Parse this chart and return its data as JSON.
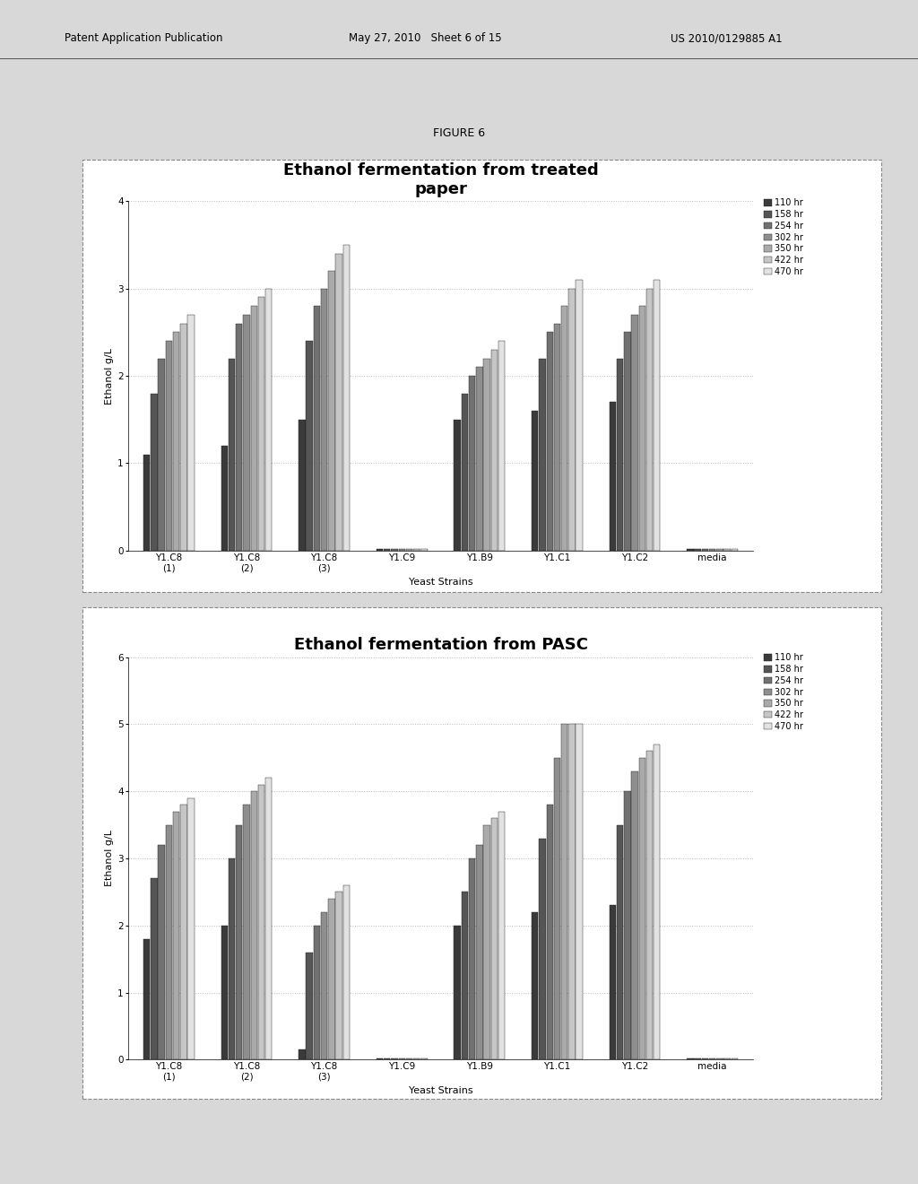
{
  "figure_label": "FIGURE 6",
  "chart1": {
    "title": "Ethanol fermentation from treated\npaper",
    "ylabel": "Ethanol g/L",
    "xlabel": "Yeast Strains",
    "ylim": [
      0,
      4
    ],
    "yticks": [
      0,
      1,
      2,
      3,
      4
    ],
    "categories": [
      "Y1.C8\n(1)",
      "Y1.C8\n(2)",
      "Y1.C8\n(3)",
      "Y1.C9",
      "Y1.B9",
      "Y1.C1",
      "Y1.C2",
      "media"
    ],
    "series_labels": [
      "110 hr",
      "158 hr",
      "254 hr",
      "302 hr",
      "350 hr",
      "422 hr",
      "470 hr"
    ],
    "data": [
      [
        1.1,
        1.2,
        1.5,
        0.02,
        1.5,
        1.6,
        1.7,
        0.02
      ],
      [
        1.8,
        2.2,
        2.4,
        0.02,
        1.8,
        2.2,
        2.2,
        0.02
      ],
      [
        2.2,
        2.6,
        2.8,
        0.02,
        2.0,
        2.5,
        2.5,
        0.02
      ],
      [
        2.4,
        2.7,
        3.0,
        0.02,
        2.1,
        2.6,
        2.7,
        0.02
      ],
      [
        2.5,
        2.8,
        3.2,
        0.02,
        2.2,
        2.8,
        2.8,
        0.02
      ],
      [
        2.6,
        2.9,
        3.4,
        0.02,
        2.3,
        3.0,
        3.0,
        0.02
      ],
      [
        2.7,
        3.0,
        3.5,
        0.02,
        2.4,
        3.1,
        3.1,
        0.02
      ]
    ]
  },
  "chart2": {
    "title": "Ethanol fermentation from PASC",
    "ylabel": "Ethanol g/L",
    "xlabel": "Yeast Strains",
    "ylim": [
      0,
      6
    ],
    "yticks": [
      0,
      1,
      2,
      3,
      4,
      5,
      6
    ],
    "categories": [
      "Y1.C8\n(1)",
      "Y1.C8\n(2)",
      "Y1.C8\n(3)",
      "Y1.C9",
      "Y1.B9",
      "Y1.C1",
      "Y1.C2",
      "media"
    ],
    "series_labels": [
      "110 hr",
      "158 hr",
      "254 hr",
      "302 hr",
      "350 hr",
      "422 hr",
      "470 hr"
    ],
    "data": [
      [
        1.8,
        2.0,
        0.15,
        0.02,
        2.0,
        2.2,
        2.3,
        0.02
      ],
      [
        2.7,
        3.0,
        1.6,
        0.02,
        2.5,
        3.3,
        3.5,
        0.02
      ],
      [
        3.2,
        3.5,
        2.0,
        0.02,
        3.0,
        3.8,
        4.0,
        0.02
      ],
      [
        3.5,
        3.8,
        2.2,
        0.02,
        3.2,
        4.5,
        4.3,
        0.02
      ],
      [
        3.7,
        4.0,
        2.4,
        0.02,
        3.5,
        5.0,
        4.5,
        0.02
      ],
      [
        3.8,
        4.1,
        2.5,
        0.02,
        3.6,
        5.0,
        4.6,
        0.02
      ],
      [
        3.9,
        4.2,
        2.6,
        0.02,
        3.7,
        5.0,
        4.7,
        0.02
      ]
    ]
  },
  "bar_colors": [
    "#3a3a3a",
    "#555555",
    "#717171",
    "#8e8e8e",
    "#aaaaaa",
    "#c6c6c6",
    "#e2e2e2"
  ],
  "bar_edge_color": "#1a1a1a",
  "background_color": "#d8d8d8",
  "chart_box_color": "#bbbbbb",
  "chart_bg": "#ffffff",
  "grid_color": "#bbbbbb",
  "header_line_color": "#555555",
  "title_fontsize": 13,
  "axis_fontsize": 8,
  "legend_fontsize": 7,
  "tick_fontsize": 7.5,
  "header_fontsize": 8.5
}
